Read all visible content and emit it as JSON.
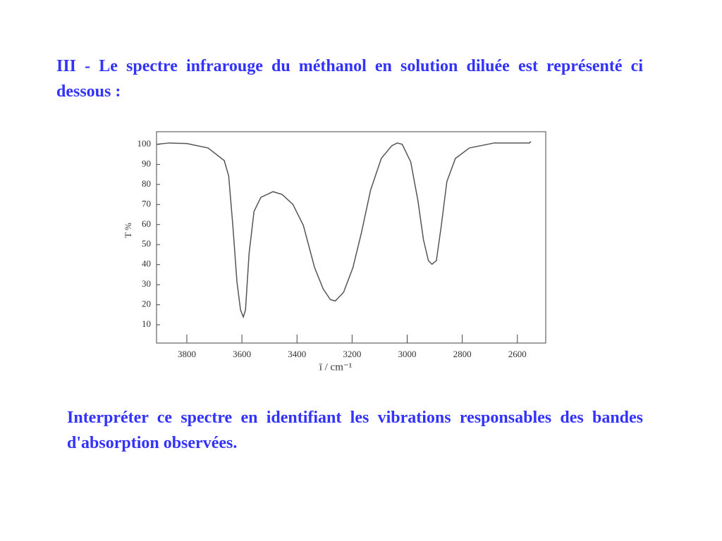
{
  "heading": "III -  Le spectre infrarouge du méthanol en solution diluée est représenté ci dessous :",
  "question": "Interpréter ce spectre en identifiant les vibrations responsables des bandes d'absorption observées.",
  "chart_data": {
    "type": "line",
    "xlabel": "ī / cm⁻¹",
    "ylabel": "T %",
    "color": "#555555",
    "x": [
      3910,
      3864,
      3800,
      3723,
      3664,
      3648,
      3633,
      3618,
      3605,
      3595,
      3587,
      3574,
      3556,
      3531,
      3487,
      3454,
      3415,
      3377,
      3336,
      3305,
      3279,
      3261,
      3231,
      3197,
      3166,
      3133,
      3094,
      3056,
      3036,
      3018,
      2987,
      2961,
      2941,
      2923,
      2910,
      2894,
      2876,
      2856,
      2825,
      2774,
      2684,
      2556,
      2551
    ],
    "values": [
      100,
      100.7,
      100.4,
      98.2,
      91.9,
      84.2,
      59.6,
      31.4,
      17.4,
      13.9,
      17.4,
      45.5,
      66.6,
      73.6,
      76.4,
      75,
      70.1,
      59.6,
      38.5,
      27.9,
      22.6,
      21.9,
      26.2,
      38.5,
      56,
      77.1,
      93,
      99.3,
      100.7,
      100,
      91.2,
      71.9,
      52.5,
      42,
      40.2,
      42,
      59.6,
      81.4,
      93,
      98.2,
      100.7,
      100.7,
      101.4
    ],
    "xlim": [
      3910,
      2497
    ],
    "xticks": [
      3800,
      3600,
      3400,
      3200,
      3000,
      2800,
      2600
    ],
    "ylim": [
      0.9,
      106.3
    ],
    "yticks": [
      10,
      20,
      30,
      40,
      50,
      60,
      70,
      80,
      90,
      100
    ]
  }
}
